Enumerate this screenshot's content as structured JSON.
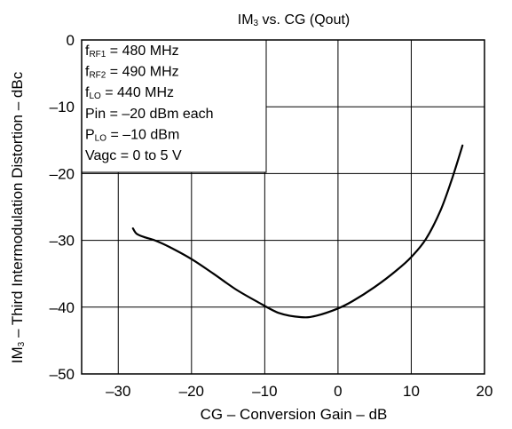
{
  "chart_data": {
    "type": "line",
    "title": "IM3 vs. CG (Qout)",
    "title_parts": {
      "main": "IM",
      "sub": "3",
      "rest": " vs. CG (Qout)"
    },
    "xlabel": "CG – Conversion Gain – dB",
    "ylabel": "IM3 – Third Intermodulation Distortion – dBc",
    "ylabel_parts": {
      "main": "IM",
      "sub": "3",
      "rest": " – Third Intermodulation Distortion – dBc"
    },
    "xlim": [
      -35,
      20
    ],
    "ylim": [
      -50,
      0
    ],
    "xticks": [
      -30,
      -20,
      -10,
      0,
      10,
      20
    ],
    "xtick_labels": [
      "–30",
      "–20",
      "–10",
      "0",
      "10",
      "20"
    ],
    "yticks": [
      0,
      -10,
      -20,
      -30,
      -40,
      -50
    ],
    "ytick_labels": [
      "0",
      "–10",
      "–20",
      "–30",
      "–40",
      "–50"
    ],
    "grid": true,
    "legend": "none",
    "annotation_box": {
      "placement": "top-left",
      "lines": [
        {
          "main": "f",
          "sub": "RF1",
          "rest": " = 480 MHz"
        },
        {
          "main": "f",
          "sub": "RF2",
          "rest": " = 490 MHz"
        },
        {
          "main": "f",
          "sub": "LO",
          "rest": " = 440 MHz"
        },
        {
          "main": "Pin = –20 dBm each",
          "sub": "",
          "rest": ""
        },
        {
          "main": "P",
          "sub": "LO",
          "rest": " = –10 dBm"
        },
        {
          "main": "Vagc = 0 to 5 V",
          "sub": "",
          "rest": ""
        }
      ]
    },
    "series": [
      {
        "x": [
          -28,
          -27.5,
          -26.5,
          -25,
          -23,
          -20,
          -17,
          -14,
          -11,
          -8,
          -5,
          -3,
          0,
          2,
          5,
          8,
          10,
          12,
          14,
          15.5,
          17
        ],
        "y": [
          -28.2,
          -29,
          -29.5,
          -30,
          -31,
          -32.8,
          -35,
          -37.3,
          -39.2,
          -40.9,
          -41.5,
          -41.3,
          -40.2,
          -39.1,
          -37,
          -34.5,
          -32.5,
          -29.8,
          -25.5,
          -21,
          -15.8
        ]
      }
    ]
  }
}
